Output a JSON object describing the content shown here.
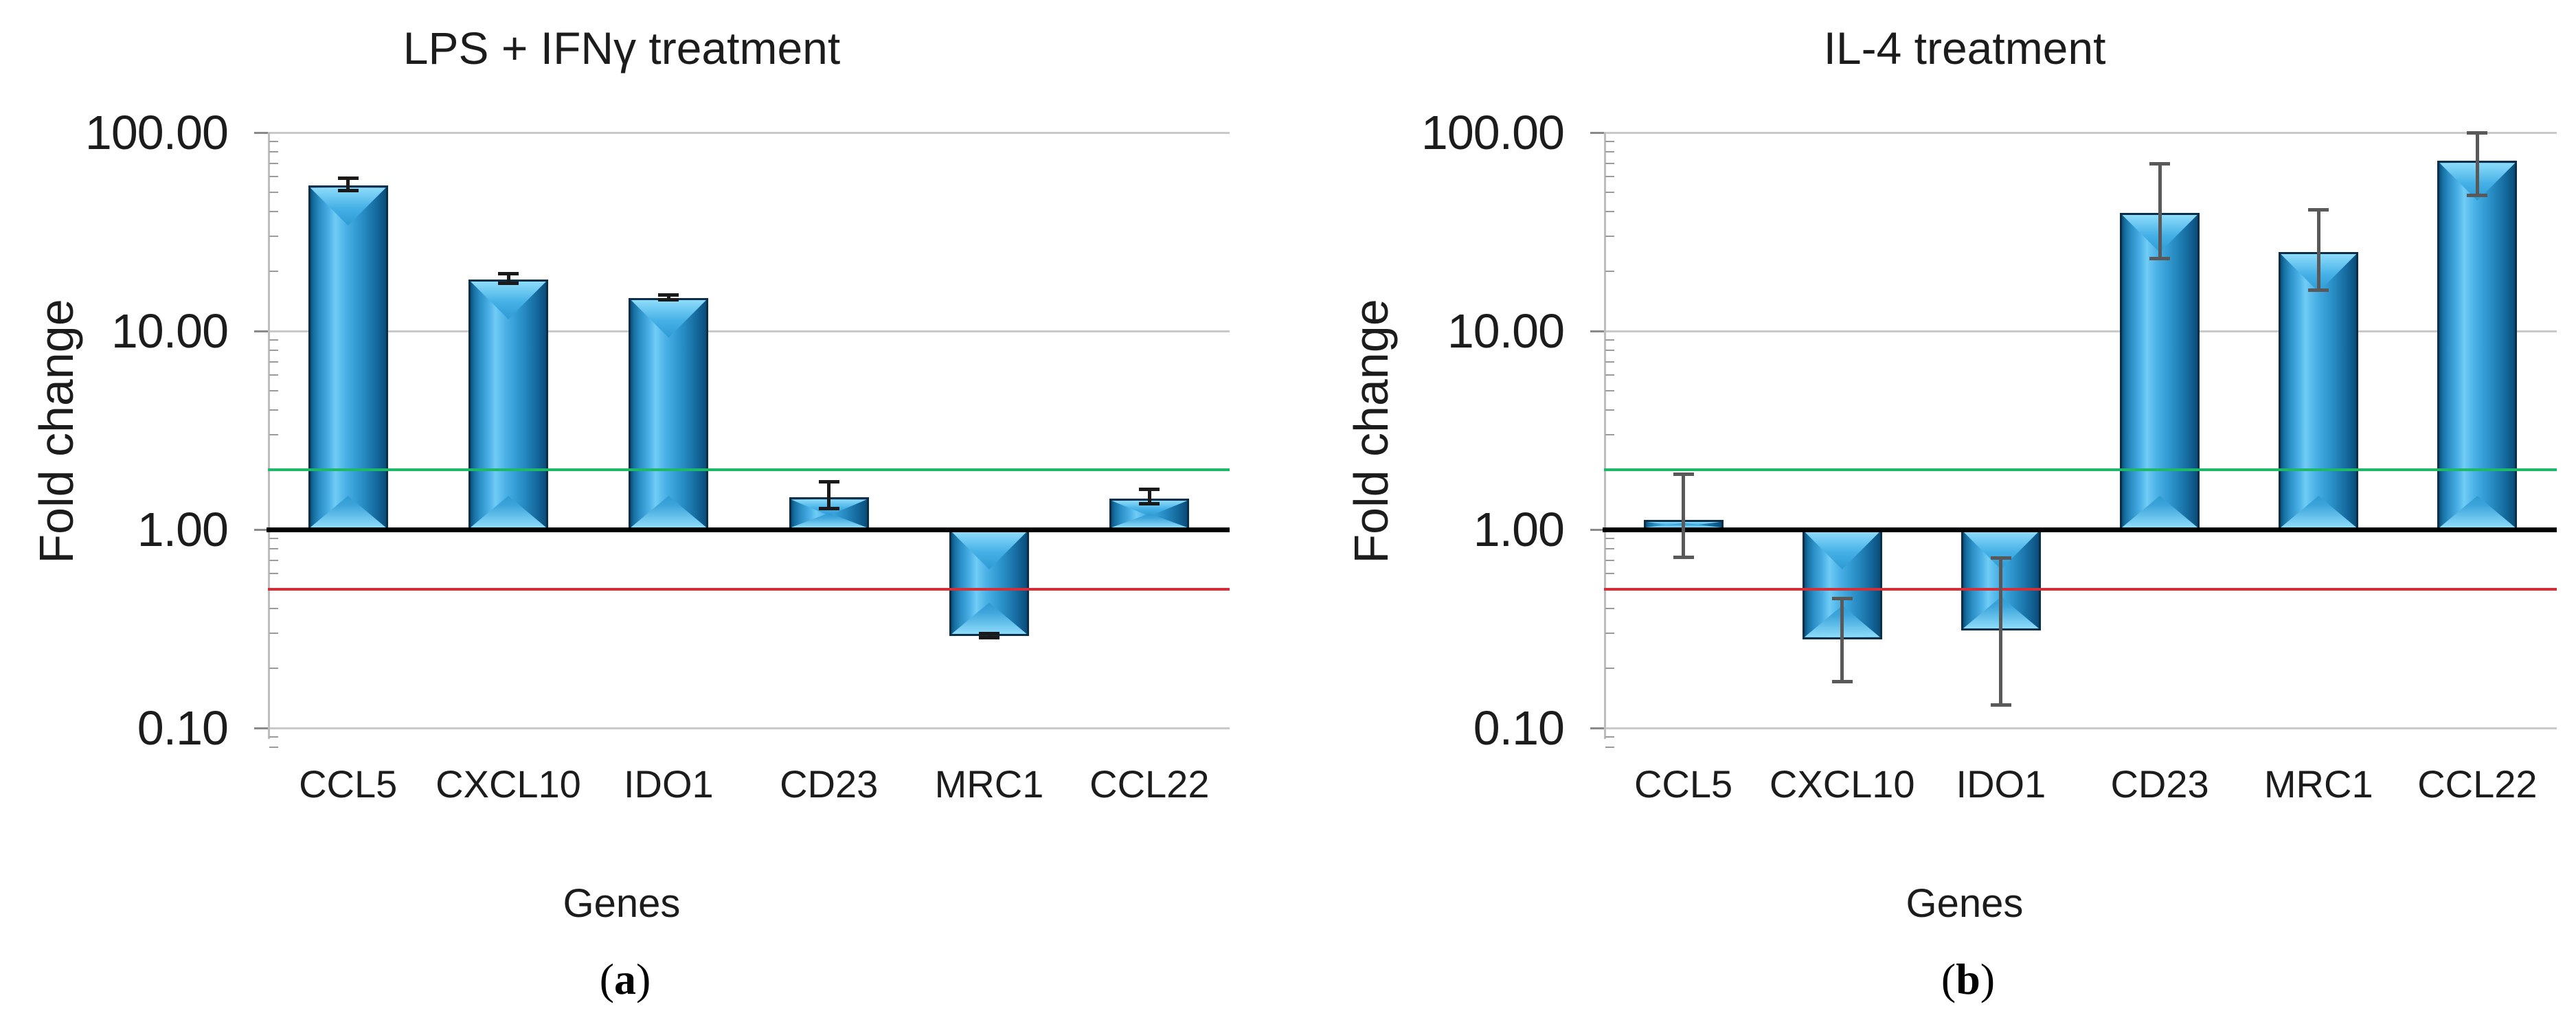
{
  "figure": {
    "panels": [
      {
        "title": "LPS + IFNγ treatment",
        "ylabel": "Fold change",
        "xlabel": "Genes",
        "caption_open": "(",
        "caption_letter": "a",
        "caption_close": ")"
      },
      {
        "title": "IL-4 treatment",
        "ylabel": "Fold change",
        "xlabel": "Genes",
        "caption_open": "(",
        "caption_letter": "b",
        "caption_close": ")"
      }
    ]
  },
  "chart_data": [
    {
      "type": "bar",
      "title": "LPS + IFNγ treatment",
      "xlabel": "Genes",
      "ylabel": "Fold change",
      "y_scale": "log",
      "ylim": [
        0.1,
        100
      ],
      "grid": true,
      "legend": false,
      "yticks": [
        {
          "label": "100.00",
          "value": 100
        },
        {
          "label": "10.00",
          "value": 10
        },
        {
          "label": "1.00",
          "value": 1
        },
        {
          "label": "0.10",
          "value": 0.1
        }
      ],
      "categories": [
        "CCL5",
        "CXCL10",
        "IDO1",
        "CD23",
        "MRC1",
        "CCL22"
      ],
      "values": [
        54,
        18.2,
        14.7,
        1.45,
        0.29,
        1.43
      ],
      "error_high": [
        59,
        19.6,
        15.2,
        1.74,
        0.3,
        1.6
      ],
      "error_low": [
        51,
        17.3,
        14.3,
        1.27,
        0.285,
        1.34
      ],
      "ref_lines": {
        "baseline": 1.0,
        "upregulation_threshold": 2.0,
        "downregulation_threshold": 0.5
      },
      "caption": "(a)"
    },
    {
      "type": "bar",
      "title": "IL-4 treatment",
      "xlabel": "Genes",
      "ylabel": "Fold change",
      "y_scale": "log",
      "ylim": [
        0.1,
        100
      ],
      "grid": true,
      "legend": false,
      "yticks": [
        {
          "label": "100.00",
          "value": 100
        },
        {
          "label": "10.00",
          "value": 10
        },
        {
          "label": "1.00",
          "value": 1
        },
        {
          "label": "0.10",
          "value": 0.1
        }
      ],
      "categories": [
        "CCL5",
        "CXCL10",
        "IDO1",
        "CD23",
        "MRC1",
        "CCL22"
      ],
      "values": [
        1.12,
        0.28,
        0.31,
        39.5,
        25,
        72
      ],
      "error_high": [
        1.9,
        0.45,
        0.72,
        70,
        41,
        100
      ],
      "error_low": [
        0.72,
        0.17,
        0.13,
        23,
        16,
        48
      ],
      "ref_lines": {
        "baseline": 1.0,
        "upregulation_threshold": 2.0,
        "downregulation_threshold": 0.5
      },
      "caption": "(b)"
    }
  ],
  "colors": {
    "bar_fill": "#2E9BD6",
    "bar_edge": "#0C2F49",
    "grid": "#C9C9C9",
    "axis": "#BDBDBD",
    "baseline": "#000000",
    "upper_ref": "#1FB868",
    "lower_ref": "#D03038",
    "error_bar_panel_a": "#1A1A1A",
    "error_bar_panel_b": "#595959",
    "text": "#1C1C1C"
  }
}
